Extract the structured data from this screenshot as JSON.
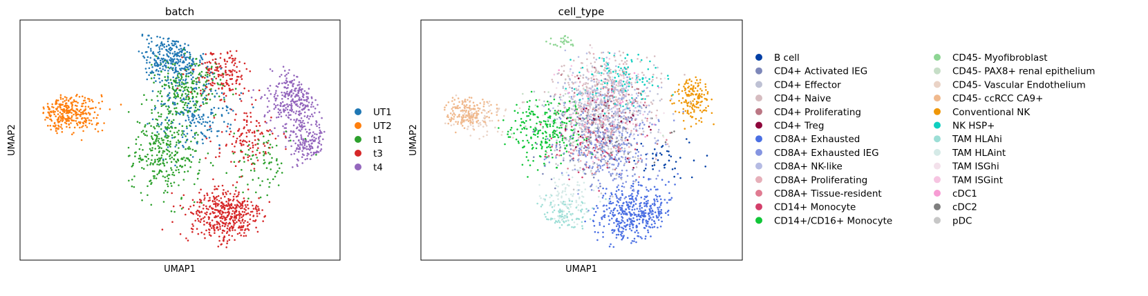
{
  "chart_data": [
    {
      "type": "scatter",
      "title": "batch",
      "xlabel": "UMAP1",
      "ylabel": "UMAP2",
      "grid": false,
      "ticks": false,
      "legend_placement": "right",
      "legend_columns": 1,
      "categories": [
        {
          "name": "UT1",
          "color": "#1f77b4"
        },
        {
          "name": "UT2",
          "color": "#ff7f0e"
        },
        {
          "name": "t1",
          "color": "#2ca02c"
        },
        {
          "name": "t3",
          "color": "#d62728"
        },
        {
          "name": "t4",
          "color": "#9467bd"
        }
      ],
      "clusters": [
        {
          "category": "UT2",
          "x": -6.0,
          "y": 3.4,
          "sx": 1.6,
          "sy": 1.1,
          "n": 320
        },
        {
          "category": "UT1",
          "x": -0.4,
          "y": 6.6,
          "sx": 1.6,
          "sy": 1.3,
          "n": 300
        },
        {
          "category": "UT1",
          "x": 0.8,
          "y": 3.4,
          "sx": 2.0,
          "sy": 2.0,
          "n": 200
        },
        {
          "category": "t1",
          "x": -0.8,
          "y": 1.2,
          "sx": 1.6,
          "sy": 2.4,
          "n": 330
        },
        {
          "category": "t1",
          "x": 0.4,
          "y": 4.8,
          "sx": 1.8,
          "sy": 1.6,
          "n": 220
        },
        {
          "category": "t1",
          "x": 4.6,
          "y": 0.6,
          "sx": 1.6,
          "sy": 1.6,
          "n": 80
        },
        {
          "category": "t3",
          "x": 2.4,
          "y": -2.6,
          "sx": 1.9,
          "sy": 1.5,
          "n": 440
        },
        {
          "category": "t3",
          "x": 2.2,
          "y": 5.6,
          "sx": 1.4,
          "sy": 1.4,
          "n": 170
        },
        {
          "category": "t3",
          "x": 3.6,
          "y": 1.8,
          "sx": 1.6,
          "sy": 1.5,
          "n": 120
        },
        {
          "category": "t4",
          "x": 6.2,
          "y": 4.2,
          "sx": 1.3,
          "sy": 1.6,
          "n": 300
        },
        {
          "category": "t4",
          "x": 6.8,
          "y": 1.6,
          "sx": 1.0,
          "sy": 1.3,
          "n": 150
        }
      ]
    },
    {
      "type": "scatter",
      "title": "cell_type",
      "xlabel": "UMAP1",
      "ylabel": "UMAP2",
      "grid": false,
      "ticks": false,
      "legend_placement": "right",
      "legend_columns": 2,
      "categories": [
        {
          "name": "B cell",
          "color": "#023fa5"
        },
        {
          "name": "CD4+ Activated IEG",
          "color": "#7d87b9"
        },
        {
          "name": "CD4+ Effector",
          "color": "#bec1d4"
        },
        {
          "name": "CD4+ Naive",
          "color": "#d6bcc0"
        },
        {
          "name": "CD4+ Proliferating",
          "color": "#bb7784"
        },
        {
          "name": "CD4+ Treg",
          "color": "#8e063b"
        },
        {
          "name": "CD8A+ Exhausted",
          "color": "#4a6fe3"
        },
        {
          "name": "CD8A+ Exhausted IEG",
          "color": "#8595e1"
        },
        {
          "name": "CD8A+ NK-like",
          "color": "#b5bbe3"
        },
        {
          "name": "CD8A+ Proliferating",
          "color": "#e6afb9"
        },
        {
          "name": "CD8A+ Tissue-resident",
          "color": "#e07b91"
        },
        {
          "name": "CD14+ Monocyte",
          "color": "#d33f6a"
        },
        {
          "name": "CD14+/CD16+ Monocyte",
          "color": "#11c638"
        },
        {
          "name": "CD45- Myofibroblast",
          "color": "#8dd593"
        },
        {
          "name": "CD45- PAX8+ renal epithelium",
          "color": "#c6dec7"
        },
        {
          "name": "CD45- Vascular Endothelium",
          "color": "#ead3c6"
        },
        {
          "name": "CD45- ccRCC CA9+",
          "color": "#f0b98d"
        },
        {
          "name": "Conventional NK",
          "color": "#ef9708"
        },
        {
          "name": "NK HSP+",
          "color": "#0fcfc0"
        },
        {
          "name": "TAM HLAhi",
          "color": "#9cded6"
        },
        {
          "name": "TAM HLAint",
          "color": "#d5eae7"
        },
        {
          "name": "TAM ISGhi",
          "color": "#f3e1eb"
        },
        {
          "name": "TAM ISGint",
          "color": "#f6c4e1"
        },
        {
          "name": "cDC1",
          "color": "#f79cd4"
        },
        {
          "name": "cDC2",
          "color": "#7f7f7f"
        },
        {
          "name": "pDC",
          "color": "#c7c7c7"
        }
      ],
      "clusters": [
        {
          "category": "CD45- ccRCC CA9+",
          "x": -6.2,
          "y": 3.4,
          "sx": 1.2,
          "sy": 0.9,
          "n": 170
        },
        {
          "category": "CD45- Vascular Endothelium",
          "x": -5.2,
          "y": 3.0,
          "sx": 1.6,
          "sy": 1.0,
          "n": 70
        },
        {
          "category": "CD45- Myofibroblast",
          "x": -1.0,
          "y": 7.6,
          "sx": 0.7,
          "sy": 0.4,
          "n": 25
        },
        {
          "category": "CD14+/CD16+ Monocyte",
          "x": -2.0,
          "y": 2.4,
          "sx": 1.8,
          "sy": 1.8,
          "n": 240
        },
        {
          "category": "CD8A+ Exhausted",
          "x": 2.8,
          "y": -2.4,
          "sx": 1.8,
          "sy": 1.5,
          "n": 420
        },
        {
          "category": "CD8A+ Exhausted IEG",
          "x": 1.6,
          "y": 1.2,
          "sx": 2.4,
          "sy": 2.4,
          "n": 280
        },
        {
          "category": "CD8A+ NK-like",
          "x": 1.4,
          "y": 4.0,
          "sx": 2.4,
          "sy": 2.2,
          "n": 260
        },
        {
          "category": "CD4+ Naive",
          "x": 1.4,
          "y": 5.2,
          "sx": 2.4,
          "sy": 1.8,
          "n": 220
        },
        {
          "category": "CD4+ Effector",
          "x": 0.8,
          "y": 3.0,
          "sx": 2.4,
          "sy": 2.4,
          "n": 200
        },
        {
          "category": "CD4+ Activated IEG",
          "x": 0.6,
          "y": 2.0,
          "sx": 2.2,
          "sy": 2.4,
          "n": 160
        },
        {
          "category": "CD4+ Proliferating",
          "x": 1.2,
          "y": 3.6,
          "sx": 2.2,
          "sy": 2.2,
          "n": 90
        },
        {
          "category": "CD4+ Treg",
          "x": 1.4,
          "y": 2.6,
          "sx": 2.2,
          "sy": 2.2,
          "n": 50
        },
        {
          "category": "CD8A+ Proliferating",
          "x": 1.0,
          "y": 2.8,
          "sx": 2.4,
          "sy": 2.4,
          "n": 90
        },
        {
          "category": "CD8A+ Tissue-resident",
          "x": 1.0,
          "y": 2.2,
          "sx": 2.2,
          "sy": 2.2,
          "n": 60
        },
        {
          "category": "CD14+ Monocyte",
          "x": 0.4,
          "y": 1.6,
          "sx": 2.2,
          "sy": 2.2,
          "n": 50
        },
        {
          "category": "Conventional NK",
          "x": 6.0,
          "y": 4.2,
          "sx": 0.9,
          "sy": 1.2,
          "n": 150
        },
        {
          "category": "NK HSP+",
          "x": 2.0,
          "y": 5.4,
          "sx": 2.2,
          "sy": 1.6,
          "n": 120
        },
        {
          "category": "TAM HLAhi",
          "x": -1.0,
          "y": -2.6,
          "sx": 1.3,
          "sy": 1.0,
          "n": 90
        },
        {
          "category": "TAM HLAint",
          "x": -0.6,
          "y": -1.6,
          "sx": 1.4,
          "sy": 1.5,
          "n": 100
        },
        {
          "category": "TAM ISGhi",
          "x": 1.2,
          "y": 4.0,
          "sx": 2.6,
          "sy": 2.2,
          "n": 110
        },
        {
          "category": "TAM ISGint",
          "x": 1.0,
          "y": 3.6,
          "sx": 2.4,
          "sy": 2.2,
          "n": 60
        },
        {
          "category": "cDC1",
          "x": 1.4,
          "y": 4.2,
          "sx": 2.0,
          "sy": 2.0,
          "n": 25
        },
        {
          "category": "cDC2",
          "x": 1.8,
          "y": 2.4,
          "sx": 2.4,
          "sy": 2.4,
          "n": 35
        },
        {
          "category": "pDC",
          "x": 1.2,
          "y": 1.8,
          "sx": 2.6,
          "sy": 2.4,
          "n": 80
        },
        {
          "category": "B cell",
          "x": 4.4,
          "y": 0.6,
          "sx": 1.6,
          "sy": 1.4,
          "n": 40
        },
        {
          "category": "CD45- PAX8+ renal epithelium",
          "x": 0.2,
          "y": 3.4,
          "sx": 2.6,
          "sy": 2.2,
          "n": 50
        }
      ]
    }
  ]
}
